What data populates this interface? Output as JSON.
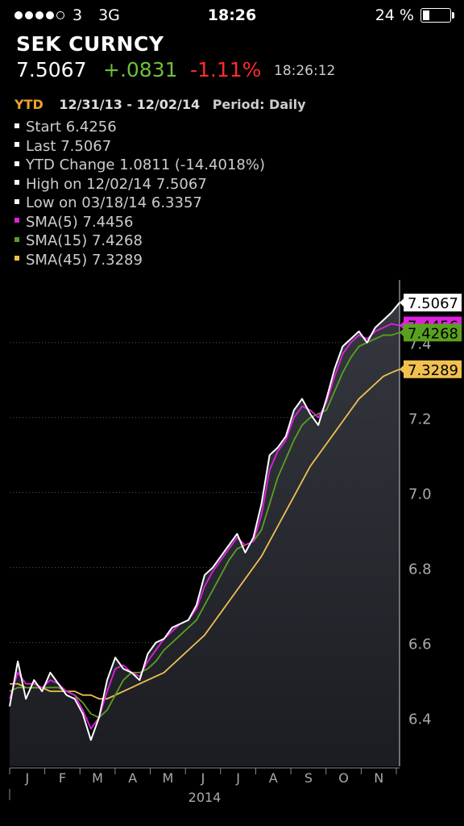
{
  "status_bar": {
    "signal_dots_filled": 4,
    "signal_dots_total": 5,
    "carrier": "3",
    "network": "3G",
    "time": "18:26",
    "battery": "24 %",
    "battery_level": 0.24
  },
  "security": {
    "name": "SEK CURNCY",
    "last": "7.5067",
    "change": "+.0831",
    "change_pct": "-1.11%",
    "time": "18:26:12"
  },
  "header": {
    "period_button": "YTD",
    "date_range": "12/31/13 - 12/02/14",
    "period": "Period: Daily"
  },
  "legend": [
    {
      "text": "Start 6.4256",
      "color": "#ffffff"
    },
    {
      "text": "Last 7.5067",
      "color": "#ffffff"
    },
    {
      "text": "YTD Change 1.0811 (-14.4018%)",
      "color": "#ffffff"
    },
    {
      "text": "High on 12/02/14 7.5067",
      "color": "#ffffff"
    },
    {
      "text": "Low on 03/18/14 6.3357",
      "color": "#ffffff"
    },
    {
      "text": "SMA(5) 7.4456",
      "color": "#e020e0"
    },
    {
      "text": "SMA(15) 7.4268",
      "color": "#5aa020"
    },
    {
      "text": "SMA(45) 7.3289",
      "color": "#f0c050"
    }
  ],
  "colors": {
    "price": "#ffffff",
    "sma5": "#e020e0",
    "sma15": "#5aa020",
    "sma45": "#f0c050",
    "grid": "#555555",
    "axis_text": "#aaaaaa"
  },
  "chart_data": {
    "type": "line",
    "ylim": [
      6.27,
      7.55
    ],
    "yticks": [
      "6.4",
      "6.6",
      "6.8",
      "7.0",
      "7.2",
      "7.4"
    ],
    "ytick_values": [
      6.4,
      6.6,
      6.8,
      7.0,
      7.2,
      7.4
    ],
    "xlabel": "2014",
    "month_labels": [
      "J",
      "F",
      "M",
      "A",
      "M",
      "J",
      "J",
      "A",
      "S",
      "O",
      "N"
    ],
    "x_range": [
      0,
      48
    ],
    "series": [
      {
        "key": "price",
        "x": [
          0,
          1,
          2,
          3,
          4,
          5,
          6,
          7,
          8,
          9,
          10,
          11,
          12,
          13,
          14,
          15,
          16,
          17,
          18,
          19,
          20,
          21,
          22,
          23,
          24,
          25,
          26,
          27,
          28,
          29,
          30,
          31,
          32,
          33,
          34,
          35,
          36,
          37,
          38,
          39,
          40,
          41,
          42,
          43,
          44,
          45,
          46,
          47,
          48
        ],
        "values": [
          6.43,
          6.55,
          6.45,
          6.5,
          6.47,
          6.52,
          6.49,
          6.46,
          6.45,
          6.41,
          6.34,
          6.4,
          6.5,
          6.56,
          6.53,
          6.52,
          6.5,
          6.57,
          6.6,
          6.61,
          6.64,
          6.65,
          6.66,
          6.7,
          6.78,
          6.8,
          6.83,
          6.86,
          6.89,
          6.84,
          6.88,
          6.97,
          7.1,
          7.12,
          7.15,
          7.22,
          7.25,
          7.21,
          7.18,
          7.25,
          7.33,
          7.39,
          7.41,
          7.43,
          7.4,
          7.44,
          7.46,
          7.48,
          7.5067
        ]
      },
      {
        "key": "sma5",
        "x": [
          0,
          1,
          2,
          3,
          4,
          5,
          6,
          7,
          8,
          9,
          10,
          11,
          12,
          13,
          14,
          15,
          16,
          17,
          18,
          19,
          20,
          21,
          22,
          23,
          24,
          25,
          26,
          27,
          28,
          29,
          30,
          31,
          32,
          33,
          34,
          35,
          36,
          37,
          38,
          39,
          40,
          41,
          42,
          43,
          44,
          45,
          46,
          47,
          48
        ],
        "values": [
          6.45,
          6.52,
          6.49,
          6.49,
          6.48,
          6.5,
          6.49,
          6.47,
          6.46,
          6.42,
          6.37,
          6.4,
          6.47,
          6.53,
          6.54,
          6.52,
          6.51,
          6.55,
          6.58,
          6.61,
          6.63,
          6.65,
          6.66,
          6.69,
          6.75,
          6.79,
          6.82,
          6.85,
          6.88,
          6.86,
          6.87,
          6.94,
          7.06,
          7.11,
          7.14,
          7.2,
          7.23,
          7.22,
          7.2,
          7.24,
          7.31,
          7.37,
          7.4,
          7.42,
          7.41,
          7.43,
          7.44,
          7.45,
          7.4456
        ]
      },
      {
        "key": "sma15",
        "x": [
          0,
          1,
          2,
          3,
          4,
          5,
          6,
          7,
          8,
          9,
          10,
          11,
          12,
          13,
          14,
          15,
          16,
          17,
          18,
          19,
          20,
          21,
          22,
          23,
          24,
          25,
          26,
          27,
          28,
          29,
          30,
          31,
          32,
          33,
          34,
          35,
          36,
          37,
          38,
          39,
          40,
          41,
          42,
          43,
          44,
          45,
          46,
          47,
          48
        ],
        "values": [
          6.47,
          6.48,
          6.48,
          6.48,
          6.48,
          6.48,
          6.48,
          6.47,
          6.46,
          6.44,
          6.41,
          6.4,
          6.42,
          6.46,
          6.5,
          6.52,
          6.52,
          6.53,
          6.55,
          6.58,
          6.6,
          6.62,
          6.64,
          6.66,
          6.7,
          6.74,
          6.78,
          6.82,
          6.85,
          6.86,
          6.87,
          6.9,
          6.97,
          7.04,
          7.09,
          7.14,
          7.18,
          7.2,
          7.21,
          7.22,
          7.27,
          7.32,
          7.36,
          7.39,
          7.4,
          7.41,
          7.42,
          7.42,
          7.4268
        ]
      },
      {
        "key": "sma45",
        "x": [
          0,
          1,
          2,
          3,
          4,
          5,
          6,
          7,
          8,
          9,
          10,
          11,
          12,
          13,
          14,
          15,
          16,
          17,
          18,
          19,
          20,
          21,
          22,
          23,
          24,
          25,
          26,
          27,
          28,
          29,
          30,
          31,
          32,
          33,
          34,
          35,
          36,
          37,
          38,
          39,
          40,
          41,
          42,
          43,
          44,
          45,
          46,
          47,
          48
        ],
        "values": [
          6.49,
          6.49,
          6.48,
          6.48,
          6.48,
          6.47,
          6.47,
          6.47,
          6.47,
          6.46,
          6.46,
          6.45,
          6.45,
          6.46,
          6.47,
          6.48,
          6.49,
          6.5,
          6.51,
          6.52,
          6.54,
          6.56,
          6.58,
          6.6,
          6.62,
          6.65,
          6.68,
          6.71,
          6.74,
          6.77,
          6.8,
          6.83,
          6.87,
          6.91,
          6.95,
          6.99,
          7.03,
          7.07,
          7.1,
          7.13,
          7.16,
          7.19,
          7.22,
          7.25,
          7.27,
          7.29,
          7.31,
          7.32,
          7.3289
        ]
      }
    ],
    "end_labels": [
      {
        "key": "price",
        "text": "7.5067",
        "value": 7.5067,
        "bg": "#ffffff",
        "fg": "#000000"
      },
      {
        "key": "sma5",
        "text": "7.4456",
        "value": 7.4456,
        "bg": "#e020e0",
        "fg": "#000000"
      },
      {
        "key": "sma15",
        "text": "7.4268",
        "value": 7.4268,
        "bg": "#5aa020",
        "fg": "#000000"
      },
      {
        "key": "sma45",
        "text": "7.3289",
        "value": 7.3289,
        "bg": "#f0c050",
        "fg": "#000000"
      }
    ]
  }
}
